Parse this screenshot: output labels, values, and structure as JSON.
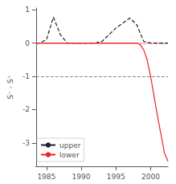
{
  "chart_data": {
    "type": "line",
    "ylabel": "S⁻ - S⁺",
    "xlim": [
      1983.5,
      2002.5
    ],
    "ylim": [
      -3.7,
      1.05
    ],
    "xticks": [
      1985,
      1990,
      1995,
      2000
    ],
    "yticks": [
      1,
      0,
      -1,
      -2,
      -3
    ],
    "grid": false,
    "legend": "lower left",
    "series": [
      {
        "name": "upper",
        "color": "#222222",
        "line_style": "dashed",
        "x": [
          1983.5,
          1984,
          1985,
          1986,
          1987,
          1988,
          1989,
          1990,
          1991,
          1992,
          1993,
          1994,
          1995,
          1996,
          1997,
          1998,
          1999,
          2000,
          2001,
          2002,
          2002.5
        ],
        "values": [
          0.0,
          0.0,
          0.1,
          0.78,
          0.25,
          0.0,
          0.0,
          0.0,
          0.0,
          0.0,
          0.05,
          0.25,
          0.45,
          0.6,
          0.75,
          0.55,
          0.05,
          0.0,
          0.0,
          0.0,
          0.0
        ]
      },
      {
        "name": "lower",
        "color": "#ee2222",
        "line_style": "solid",
        "x": [
          1983.5,
          1984,
          1985,
          1986,
          1987,
          1988,
          1989,
          1990,
          1991,
          1992,
          1993,
          1994,
          1995,
          1996,
          1997,
          1998,
          1998.5,
          1999,
          1999.5,
          2000,
          2000.5,
          2001,
          2002,
          2002.5
        ],
        "values": [
          0.0,
          0.0,
          0.0,
          0.0,
          0.0,
          0.0,
          0.0,
          0.0,
          0.0,
          0.0,
          0.0,
          0.0,
          0.0,
          0.0,
          0.0,
          0.0,
          -0.05,
          -0.2,
          -0.5,
          -1.0,
          -1.6,
          -2.2,
          -3.3,
          -3.55
        ]
      }
    ],
    "hlines": [
      {
        "y": 0,
        "color": "#ffaaaa",
        "line_style": "solid"
      },
      {
        "y": -1.0,
        "color": "#888888",
        "line_style": "dashed"
      }
    ]
  }
}
